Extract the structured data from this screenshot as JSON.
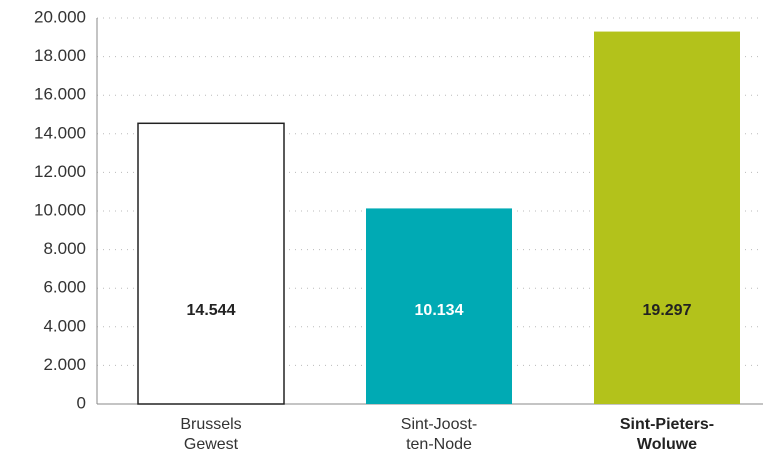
{
  "chart_data": {
    "type": "bar",
    "categories": [
      "Brussels Gewest",
      "Sint-Joost-ten-Node",
      "Sint-Pieters-Woluwe"
    ],
    "values": [
      14544,
      10134,
      19297
    ],
    "value_labels": [
      "14.544",
      "10.134",
      "19.297"
    ],
    "colors": [
      "#ffffff",
      "#00aab4",
      "#b3c21b"
    ],
    "label_colors": [
      "#222222",
      "#ffffff",
      "#222222"
    ],
    "highlight": 2,
    "ylim": [
      0,
      20000
    ],
    "yticks": [
      0,
      {
        "value": 2000,
        "label": "2.000"
      },
      {
        "value": 4000,
        "label": "4.000"
      },
      {
        "value": 6000,
        "label": "6.000"
      },
      {
        "value": 8000,
        "label": "8.000"
      },
      {
        "value": 10000,
        "label": "10.000"
      },
      {
        "value": 12000,
        "label": "12.000"
      },
      {
        "value": 14000,
        "label": "14.000"
      },
      {
        "value": 16000,
        "label": "16.000"
      },
      {
        "value": 18000,
        "label": "18.000"
      },
      {
        "value": 20000,
        "label": "20.000"
      }
    ],
    "grid": true
  }
}
